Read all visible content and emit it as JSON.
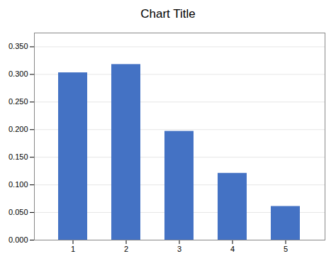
{
  "chart_data": {
    "type": "bar",
    "title": "Chart Title",
    "categories": [
      "1",
      "2",
      "3",
      "4",
      "5"
    ],
    "values": [
      0.303,
      0.318,
      0.197,
      0.121,
      0.061
    ],
    "color": "#4472C4",
    "ylim": [
      0,
      0.375
    ],
    "yticks": [
      {
        "value": 0,
        "label": "0.000"
      },
      {
        "value": 0.05,
        "label": "0.050"
      },
      {
        "value": 0.1,
        "label": "0.100"
      },
      {
        "value": 0.15,
        "label": "0.150"
      },
      {
        "value": 0.2,
        "label": "0.200"
      },
      {
        "value": 0.25,
        "label": "0.250"
      },
      {
        "value": 0.3,
        "label": "0.300"
      },
      {
        "value": 0.35,
        "label": "0.350"
      }
    ],
    "grid": true
  }
}
